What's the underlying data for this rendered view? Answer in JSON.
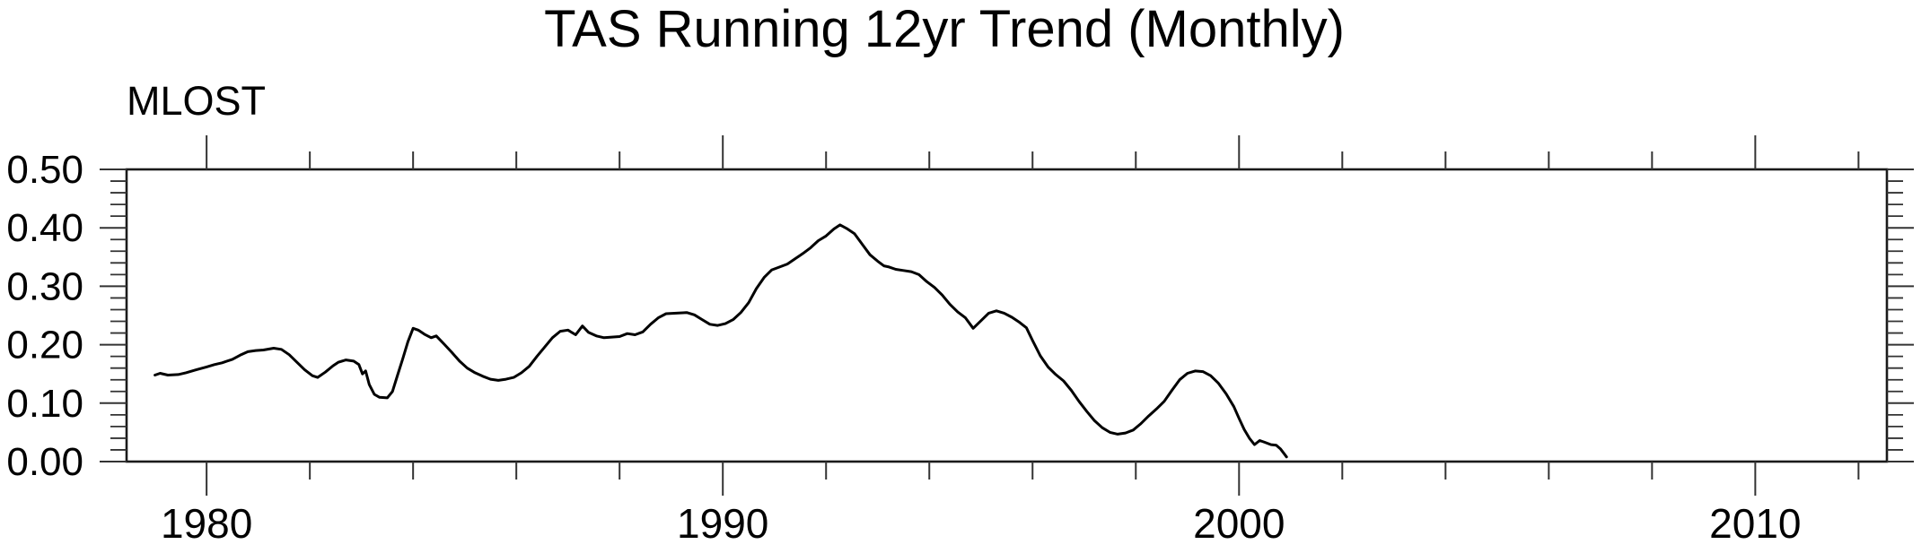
{
  "title": "TAS Running 12yr Trend (Monthly)",
  "left_label": "MLOST",
  "chart_data": {
    "type": "line",
    "title": "TAS Running 12yr Trend (Monthly)",
    "subtitle_left": "MLOST",
    "xlabel": "",
    "ylabel": "",
    "xlim": [
      1978.45,
      2012.55
    ],
    "ylim": [
      0.0,
      0.5
    ],
    "grid": false,
    "legend": "none",
    "frame": true,
    "x_major_ticks": [
      1980,
      1990,
      2000,
      2010
    ],
    "x_tick_labels": [
      "1980",
      "1990",
      "2000",
      "2010"
    ],
    "x_minor_tick_step_years": 2,
    "x_minor_ticks": [
      1980,
      1982,
      1984,
      1986,
      1988,
      1990,
      1992,
      1994,
      1996,
      1998,
      2000,
      2002,
      2004,
      2006,
      2008,
      2010,
      2012
    ],
    "y_major_ticks": [
      0.0,
      0.1,
      0.2,
      0.3,
      0.4,
      0.5
    ],
    "y_tick_labels": [
      "0.00",
      "0.10",
      "0.20",
      "0.30",
      "0.40",
      "0.50"
    ],
    "y_minor_tick_step": 0.02,
    "line_color": "#000000",
    "axis_color": "#1a1a1a",
    "tick_color": "#333333",
    "series": [
      {
        "name": "MLOST",
        "color": "#000000",
        "points": [
          [
            1979.0,
            0.148
          ],
          [
            1979.1,
            0.151
          ],
          [
            1979.25,
            0.148
          ],
          [
            1979.45,
            0.149
          ],
          [
            1979.6,
            0.152
          ],
          [
            1979.8,
            0.157
          ],
          [
            1980.0,
            0.162
          ],
          [
            1980.15,
            0.166
          ],
          [
            1980.3,
            0.169
          ],
          [
            1980.5,
            0.175
          ],
          [
            1980.65,
            0.182
          ],
          [
            1980.8,
            0.188
          ],
          [
            1980.95,
            0.19
          ],
          [
            1981.1,
            0.191
          ],
          [
            1981.3,
            0.194
          ],
          [
            1981.45,
            0.192
          ],
          [
            1981.6,
            0.183
          ],
          [
            1981.75,
            0.17
          ],
          [
            1981.9,
            0.157
          ],
          [
            1982.05,
            0.147
          ],
          [
            1982.15,
            0.144
          ],
          [
            1982.3,
            0.153
          ],
          [
            1982.45,
            0.164
          ],
          [
            1982.55,
            0.17
          ],
          [
            1982.7,
            0.174
          ],
          [
            1982.85,
            0.172
          ],
          [
            1982.95,
            0.166
          ],
          [
            1983.02,
            0.15
          ],
          [
            1983.08,
            0.155
          ],
          [
            1983.15,
            0.132
          ],
          [
            1983.25,
            0.115
          ],
          [
            1983.35,
            0.11
          ],
          [
            1983.5,
            0.109
          ],
          [
            1983.6,
            0.12
          ],
          [
            1983.7,
            0.148
          ],
          [
            1983.8,
            0.176
          ],
          [
            1983.9,
            0.205
          ],
          [
            1984.0,
            0.228
          ],
          [
            1984.1,
            0.225
          ],
          [
            1984.22,
            0.218
          ],
          [
            1984.35,
            0.212
          ],
          [
            1984.45,
            0.215
          ],
          [
            1984.6,
            0.201
          ],
          [
            1984.75,
            0.187
          ],
          [
            1984.9,
            0.172
          ],
          [
            1985.05,
            0.16
          ],
          [
            1985.2,
            0.152
          ],
          [
            1985.35,
            0.146
          ],
          [
            1985.5,
            0.141
          ],
          [
            1985.65,
            0.139
          ],
          [
            1985.8,
            0.141
          ],
          [
            1985.95,
            0.144
          ],
          [
            1986.1,
            0.152
          ],
          [
            1986.25,
            0.163
          ],
          [
            1986.4,
            0.18
          ],
          [
            1986.55,
            0.196
          ],
          [
            1986.7,
            0.212
          ],
          [
            1986.85,
            0.223
          ],
          [
            1987.0,
            0.225
          ],
          [
            1987.15,
            0.217
          ],
          [
            1987.28,
            0.232
          ],
          [
            1987.4,
            0.221
          ],
          [
            1987.55,
            0.215
          ],
          [
            1987.7,
            0.212
          ],
          [
            1987.85,
            0.213
          ],
          [
            1988.0,
            0.214
          ],
          [
            1988.15,
            0.219
          ],
          [
            1988.3,
            0.217
          ],
          [
            1988.45,
            0.222
          ],
          [
            1988.6,
            0.235
          ],
          [
            1988.75,
            0.246
          ],
          [
            1988.9,
            0.253
          ],
          [
            1989.1,
            0.254
          ],
          [
            1989.3,
            0.255
          ],
          [
            1989.45,
            0.251
          ],
          [
            1989.6,
            0.243
          ],
          [
            1989.75,
            0.235
          ],
          [
            1989.9,
            0.233
          ],
          [
            1990.05,
            0.236
          ],
          [
            1990.2,
            0.243
          ],
          [
            1990.35,
            0.255
          ],
          [
            1990.5,
            0.272
          ],
          [
            1990.65,
            0.296
          ],
          [
            1990.8,
            0.315
          ],
          [
            1990.95,
            0.328
          ],
          [
            1991.1,
            0.333
          ],
          [
            1991.25,
            0.338
          ],
          [
            1991.4,
            0.347
          ],
          [
            1991.55,
            0.356
          ],
          [
            1991.7,
            0.366
          ],
          [
            1991.85,
            0.378
          ],
          [
            1992.0,
            0.386
          ],
          [
            1992.15,
            0.398
          ],
          [
            1992.27,
            0.405
          ],
          [
            1992.4,
            0.399
          ],
          [
            1992.55,
            0.39
          ],
          [
            1992.7,
            0.372
          ],
          [
            1992.85,
            0.354
          ],
          [
            1993.0,
            0.343
          ],
          [
            1993.12,
            0.335
          ],
          [
            1993.22,
            0.333
          ],
          [
            1993.35,
            0.329
          ],
          [
            1993.5,
            0.327
          ],
          [
            1993.65,
            0.325
          ],
          [
            1993.8,
            0.32
          ],
          [
            1993.95,
            0.308
          ],
          [
            1994.1,
            0.298
          ],
          [
            1994.25,
            0.285
          ],
          [
            1994.4,
            0.269
          ],
          [
            1994.55,
            0.256
          ],
          [
            1994.7,
            0.246
          ],
          [
            1994.85,
            0.228
          ],
          [
            1995.0,
            0.241
          ],
          [
            1995.15,
            0.254
          ],
          [
            1995.3,
            0.258
          ],
          [
            1995.45,
            0.254
          ],
          [
            1995.6,
            0.247
          ],
          [
            1995.75,
            0.238
          ],
          [
            1995.88,
            0.229
          ],
          [
            1996.0,
            0.207
          ],
          [
            1996.15,
            0.181
          ],
          [
            1996.3,
            0.162
          ],
          [
            1996.45,
            0.149
          ],
          [
            1996.6,
            0.138
          ],
          [
            1996.75,
            0.122
          ],
          [
            1996.9,
            0.103
          ],
          [
            1997.05,
            0.086
          ],
          [
            1997.2,
            0.07
          ],
          [
            1997.35,
            0.058
          ],
          [
            1997.5,
            0.05
          ],
          [
            1997.65,
            0.047
          ],
          [
            1997.8,
            0.049
          ],
          [
            1997.95,
            0.054
          ],
          [
            1998.1,
            0.065
          ],
          [
            1998.25,
            0.078
          ],
          [
            1998.4,
            0.09
          ],
          [
            1998.55,
            0.103
          ],
          [
            1998.7,
            0.122
          ],
          [
            1998.85,
            0.14
          ],
          [
            1999.0,
            0.151
          ],
          [
            1999.15,
            0.155
          ],
          [
            1999.3,
            0.154
          ],
          [
            1999.45,
            0.147
          ],
          [
            1999.6,
            0.134
          ],
          [
            1999.75,
            0.116
          ],
          [
            1999.9,
            0.094
          ],
          [
            2000.0,
            0.074
          ],
          [
            2000.1,
            0.055
          ],
          [
            2000.2,
            0.04
          ],
          [
            2000.3,
            0.029
          ],
          [
            2000.4,
            0.036
          ],
          [
            2000.5,
            0.033
          ],
          [
            2000.62,
            0.029
          ],
          [
            2000.72,
            0.028
          ],
          [
            2000.8,
            0.022
          ],
          [
            2000.87,
            0.014
          ],
          [
            2000.92,
            0.008
          ]
        ]
      }
    ]
  }
}
